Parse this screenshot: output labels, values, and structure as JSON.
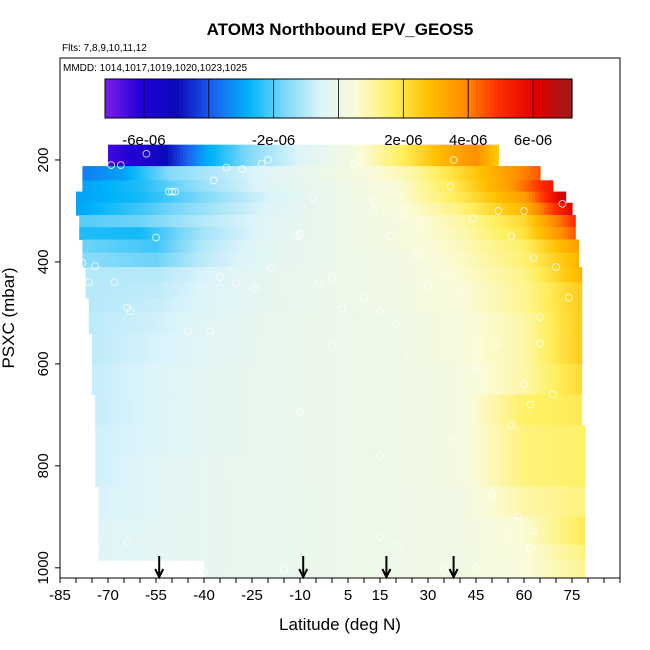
{
  "chart_data": {
    "type": "heatmap",
    "title": "ATOM3 Northbound EPV_GEOS5",
    "flights_label": "Flts: 7,8,9,10,11,12",
    "dates_label": "MMDD: 1014,1017,1019,1020,1023,1025",
    "xlabel": "Latitude (deg N)",
    "ylabel": "PSXC (mbar)",
    "xlim": [
      -85,
      90
    ],
    "ylim": [
      1020,
      0
    ],
    "x_ticks": [
      "-85",
      "-70",
      "-55",
      "-40",
      "-25",
      "-10",
      "5",
      "15",
      "30",
      "45",
      "60",
      "75"
    ],
    "y_ticks": [
      "200",
      "400",
      "600",
      "800",
      "1000"
    ],
    "colorbar": {
      "range": [
        -7.2e-06,
        7.2e-06
      ],
      "tick_labels": [
        "-6e-06",
        "-2e-06",
        "2e-06",
        "4e-06",
        "6e-06"
      ],
      "tick_values": [
        -6e-06,
        -2e-06,
        2e-06,
        4e-06,
        6e-06
      ],
      "colors": [
        "#7a1fe8",
        "#2200d8",
        "#0a0ab8",
        "#1a60f0",
        "#00b4f8",
        "#7cd8f8",
        "#dcf4fb",
        "#fbfbd8",
        "#fff060",
        "#ffc000",
        "#ff8c00",
        "#ff2a00",
        "#e00000",
        "#9e1a1a"
      ]
    },
    "profile_markers_lat": [
      -54,
      -9,
      17,
      38
    ],
    "surface_rows": [
      {
        "p": [
          170,
          212
        ],
        "lat": [
          -70,
          52
        ]
      },
      {
        "p": [
          212,
          240
        ],
        "lat": [
          -78,
          65
        ]
      },
      {
        "p": [
          240,
          262
        ],
        "lat": [
          -78,
          69
        ]
      },
      {
        "p": [
          262,
          284
        ],
        "lat": [
          -80,
          73
        ]
      },
      {
        "p": [
          284,
          308
        ],
        "lat": [
          -80,
          75
        ]
      },
      {
        "p": [
          308,
          332
        ],
        "lat": [
          -79,
          76
        ]
      },
      {
        "p": [
          332,
          356
        ],
        "lat": [
          -79,
          76
        ]
      },
      {
        "p": [
          356,
          382
        ],
        "lat": [
          -78,
          77
        ]
      },
      {
        "p": [
          382,
          410
        ],
        "lat": [
          -78,
          77
        ]
      },
      {
        "p": [
          410,
          440
        ],
        "lat": [
          -77,
          78
        ]
      },
      {
        "p": [
          440,
          470
        ],
        "lat": [
          -77,
          78
        ]
      },
      {
        "p": [
          470,
          500
        ],
        "lat": [
          -76,
          78
        ]
      },
      {
        "p": [
          500,
          540
        ],
        "lat": [
          -76,
          78
        ]
      },
      {
        "p": [
          540,
          600
        ],
        "lat": [
          -75,
          78
        ]
      },
      {
        "p": [
          600,
          660
        ],
        "lat": [
          -75,
          78
        ]
      },
      {
        "p": [
          660,
          720
        ],
        "lat": [
          -74,
          78
        ]
      },
      {
        "p": [
          720,
          780
        ],
        "lat": [
          -74,
          79
        ]
      },
      {
        "p": [
          780,
          840
        ],
        "lat": [
          -74,
          79
        ]
      },
      {
        "p": [
          840,
          900
        ],
        "lat": [
          -73,
          79
        ]
      },
      {
        "p": [
          900,
          955
        ],
        "lat": [
          -73,
          79
        ]
      },
      {
        "p": [
          955,
          985
        ],
        "lat": [
          -73,
          79
        ]
      },
      {
        "p": [
          985,
          1020
        ],
        "lat": [
          -40,
          79
        ]
      }
    ],
    "epv_profiles": [
      {
        "p": 180,
        "lat": [
          -70,
          -55,
          -40,
          -25,
          -10,
          5,
          20,
          35,
          45,
          52
        ],
        "epv": [
          -6.5e-06,
          -5.5e-06,
          -3e-06,
          -1.5e-06,
          -5e-07,
          2e-07,
          1.5e-06,
          3e-06,
          3.8e-06,
          2.5e-06
        ]
      },
      {
        "p": 226,
        "lat": [
          -78,
          -65,
          -50,
          -35,
          -20,
          -5,
          10,
          25,
          40,
          55,
          65
        ],
        "epv": [
          -3.5e-06,
          -3e-06,
          -1.5e-06,
          -1e-06,
          -4e-07,
          0.0,
          4e-07,
          1e-06,
          2.2e-06,
          3.5e-06,
          4.5e-06
        ]
      },
      {
        "p": 251,
        "lat": [
          -78,
          -60,
          -40,
          -20,
          0,
          20,
          40,
          55,
          69
        ],
        "epv": [
          -3e-06,
          -2.5e-06,
          -1.3e-06,
          -4e-07,
          0.0,
          5e-07,
          2e-06,
          3.5e-06,
          5.5e-06
        ]
      },
      {
        "p": 273,
        "lat": [
          -80,
          -60,
          -40,
          -20,
          0,
          20,
          40,
          60,
          73
        ],
        "epv": [
          -3e-06,
          -2.6e-06,
          -1.6e-06,
          -6e-07,
          0.0,
          5e-07,
          1.8e-06,
          3.5e-06,
          6.5e-06
        ]
      },
      {
        "p": 296,
        "lat": [
          -80,
          -60,
          -40,
          -20,
          0,
          20,
          40,
          60,
          75
        ],
        "epv": [
          -3e-06,
          -2.2e-06,
          -1.3e-06,
          -5e-07,
          0.0,
          4e-07,
          1.4e-06,
          3e-06,
          6e-06
        ]
      },
      {
        "p": 320,
        "lat": [
          -79,
          -60,
          -40,
          -20,
          0,
          20,
          40,
          60,
          76
        ],
        "epv": [
          -2e-06,
          -1.8e-06,
          -1e-06,
          -4e-07,
          0.0,
          3e-07,
          1e-06,
          2.2e-06,
          5e-06
        ]
      },
      {
        "p": 344,
        "lat": [
          -79,
          -60,
          -40,
          -20,
          0,
          20,
          40,
          60,
          76
        ],
        "epv": [
          -2.5e-06,
          -2.6e-06,
          -1.2e-06,
          -4e-07,
          0.0,
          3e-07,
          9e-07,
          2e-06,
          4.5e-06
        ]
      },
      {
        "p": 369,
        "lat": [
          -78,
          -55,
          -40,
          -20,
          0,
          20,
          40,
          60,
          77
        ],
        "epv": [
          -1.8e-06,
          -2.2e-06,
          -1e-06,
          -3e-07,
          0.0,
          3e-07,
          8e-07,
          1.6e-06,
          3.5e-06
        ]
      },
      {
        "p": 396,
        "lat": [
          -78,
          -55,
          -40,
          -20,
          0,
          20,
          40,
          60,
          77
        ],
        "epv": [
          -1.5e-06,
          -1.8e-06,
          -9e-07,
          -3e-07,
          0.0,
          2e-07,
          7e-07,
          1.5e-06,
          3e-06
        ]
      },
      {
        "p": 425,
        "lat": [
          -77,
          -55,
          -40,
          -20,
          0,
          20,
          40,
          60,
          78
        ],
        "epv": [
          -1e-06,
          -1e-06,
          -6e-07,
          -2e-07,
          0.0,
          2e-07,
          6e-07,
          1.3e-06,
          3e-06
        ]
      },
      {
        "p": 455,
        "lat": [
          -77,
          -55,
          -40,
          -20,
          0,
          20,
          40,
          60,
          78
        ],
        "epv": [
          -1e-06,
          -9e-07,
          -5e-07,
          -2e-07,
          0.0,
          2e-07,
          5e-07,
          1.2e-06,
          2.5e-06
        ]
      },
      {
        "p": 485,
        "lat": [
          -76,
          -55,
          -40,
          -20,
          0,
          20,
          40,
          60,
          78
        ],
        "epv": [
          -1e-06,
          -8e-07,
          -5e-07,
          -2e-07,
          0.0,
          2e-07,
          5e-07,
          1.2e-06,
          2.5e-06
        ]
      },
      {
        "p": 520,
        "lat": [
          -76,
          -55,
          -40,
          -20,
          0,
          20,
          40,
          60,
          78
        ],
        "epv": [
          -9e-07,
          -7e-07,
          -4e-07,
          -1e-07,
          0.0,
          1e-07,
          4e-07,
          1e-06,
          2.5e-06
        ]
      },
      {
        "p": 570,
        "lat": [
          -75,
          -55,
          -40,
          -20,
          0,
          20,
          40,
          60,
          78
        ],
        "epv": [
          -9e-07,
          -6e-07,
          -4e-07,
          -1e-07,
          0.0,
          1e-07,
          4e-07,
          1e-06,
          2.5e-06
        ]
      },
      {
        "p": 630,
        "lat": [
          -75,
          -55,
          -40,
          -20,
          0,
          20,
          40,
          60,
          78
        ],
        "epv": [
          -8e-07,
          -5e-07,
          -3e-07,
          -1e-07,
          0.0,
          1e-07,
          3e-07,
          1e-06,
          2.2e-06
        ]
      },
      {
        "p": 690,
        "lat": [
          -74,
          -55,
          -40,
          -20,
          0,
          20,
          40,
          60,
          78
        ],
        "epv": [
          -8e-07,
          -5e-07,
          -3e-07,
          -1e-07,
          0.0,
          1e-07,
          3e-07,
          1.6e-06,
          1.8e-06
        ]
      },
      {
        "p": 750,
        "lat": [
          -74,
          -55,
          -40,
          -20,
          0,
          20,
          40,
          60,
          79
        ],
        "epv": [
          -7e-07,
          -5e-07,
          -3e-07,
          -1e-07,
          0.0,
          1e-07,
          3e-07,
          1.4e-06,
          1.6e-06
        ]
      },
      {
        "p": 810,
        "lat": [
          -74,
          -55,
          -40,
          -20,
          0,
          20,
          40,
          60,
          79
        ],
        "epv": [
          -7e-07,
          -4e-07,
          -2e-07,
          -1e-07,
          0.0,
          1e-07,
          3e-07,
          1.4e-06,
          1.6e-06
        ]
      },
      {
        "p": 870,
        "lat": [
          -73,
          -55,
          -40,
          -20,
          0,
          20,
          40,
          60,
          79
        ],
        "epv": [
          -6e-07,
          -4e-07,
          -2e-07,
          -1e-07,
          0.0,
          1e-07,
          2e-07,
          1e-06,
          1.4e-06
        ]
      },
      {
        "p": 928,
        "lat": [
          -73,
          -55,
          -40,
          -20,
          0,
          20,
          40,
          60,
          79
        ],
        "epv": [
          -5e-07,
          -3e-07,
          -2e-07,
          -1e-07,
          0.0,
          1e-07,
          2e-07,
          6e-07,
          1.8e-06
        ]
      },
      {
        "p": 970,
        "lat": [
          -73,
          -55,
          -40,
          -20,
          0,
          20,
          40,
          60,
          79
        ],
        "epv": [
          -5e-07,
          -3e-07,
          -2e-07,
          -1e-07,
          0.0,
          1e-07,
          2e-07,
          5e-07,
          1.4e-06
        ]
      },
      {
        "p": 1002,
        "lat": [
          -40,
          -20,
          0,
          20,
          40,
          60,
          79
        ],
        "epv": [
          -2e-07,
          -1e-07,
          0.0,
          1e-07,
          2e-07,
          5e-07,
          1.2e-06
        ]
      }
    ],
    "observations": [
      {
        "lat": -69,
        "p": 210
      },
      {
        "lat": -66,
        "p": 210
      },
      {
        "lat": -58,
        "p": 188
      },
      {
        "lat": -84,
        "p": 218
      },
      {
        "lat": -51,
        "p": 262
      },
      {
        "lat": -50,
        "p": 262
      },
      {
        "lat": -49,
        "p": 262
      },
      {
        "lat": -37,
        "p": 240
      },
      {
        "lat": -33,
        "p": 215
      },
      {
        "lat": -28,
        "p": 218
      },
      {
        "lat": -22,
        "p": 207
      },
      {
        "lat": -20,
        "p": 200
      },
      {
        "lat": -55,
        "p": 352
      },
      {
        "lat": -85,
        "p": 330
      },
      {
        "lat": -78,
        "p": 402
      },
      {
        "lat": -74,
        "p": 408
      },
      {
        "lat": -76,
        "p": 440
      },
      {
        "lat": -68,
        "p": 440
      },
      {
        "lat": -80,
        "p": 496
      },
      {
        "lat": -63,
        "p": 496
      },
      {
        "lat": -64,
        "p": 490
      },
      {
        "lat": -45,
        "p": 536
      },
      {
        "lat": -38,
        "p": 536
      },
      {
        "lat": -30,
        "p": 442
      },
      {
        "lat": -35,
        "p": 430
      },
      {
        "lat": -24,
        "p": 452
      },
      {
        "lat": -19,
        "p": 412
      },
      {
        "lat": -11,
        "p": 350
      },
      {
        "lat": -10,
        "p": 347
      },
      {
        "lat": -4,
        "p": 440
      },
      {
        "lat": 0,
        "p": 430
      },
      {
        "lat": -6,
        "p": 275
      },
      {
        "lat": 7,
        "p": 208
      },
      {
        "lat": 13,
        "p": 280
      },
      {
        "lat": 13,
        "p": 298
      },
      {
        "lat": 18,
        "p": 350
      },
      {
        "lat": 22,
        "p": 307
      },
      {
        "lat": 27,
        "p": 385
      },
      {
        "lat": 30,
        "p": 448
      },
      {
        "lat": 38,
        "p": 200
      },
      {
        "lat": 37,
        "p": 252
      },
      {
        "lat": 44,
        "p": 315
      },
      {
        "lat": 52,
        "p": 300
      },
      {
        "lat": 56,
        "p": 350
      },
      {
        "lat": 60,
        "p": 300
      },
      {
        "lat": 72,
        "p": 286
      },
      {
        "lat": 63,
        "p": 392
      },
      {
        "lat": 74,
        "p": 470
      },
      {
        "lat": 70,
        "p": 410
      },
      {
        "lat": 65,
        "p": 508
      },
      {
        "lat": 52,
        "p": 560
      },
      {
        "lat": 60,
        "p": 640
      },
      {
        "lat": 56,
        "p": 720
      },
      {
        "lat": 45,
        "p": 608
      },
      {
        "lat": 38,
        "p": 750
      },
      {
        "lat": 15,
        "p": 780
      },
      {
        "lat": -10,
        "p": 695
      },
      {
        "lat": 3,
        "p": 492
      },
      {
        "lat": 0,
        "p": 565
      },
      {
        "lat": 24,
        "p": 580
      },
      {
        "lat": 15,
        "p": 497
      },
      {
        "lat": 10,
        "p": 470
      },
      {
        "lat": 20,
        "p": 522
      },
      {
        "lat": 54,
        "p": 940
      },
      {
        "lat": 58,
        "p": 900
      },
      {
        "lat": 63,
        "p": 928
      },
      {
        "lat": 50,
        "p": 858
      },
      {
        "lat": -73,
        "p": 948
      },
      {
        "lat": -64,
        "p": 948
      },
      {
        "lat": -40,
        "p": 1008
      },
      {
        "lat": -15,
        "p": 1003
      },
      {
        "lat": 15,
        "p": 940
      },
      {
        "lat": 21,
        "p": 955
      },
      {
        "lat": 35,
        "p": 1003
      },
      {
        "lat": 45,
        "p": 1000
      },
      {
        "lat": 56,
        "p": 1002
      },
      {
        "lat": 62,
        "p": 960
      },
      {
        "lat": 65,
        "p": 560
      },
      {
        "lat": 62,
        "p": 680
      },
      {
        "lat": 69,
        "p": 660
      }
    ]
  }
}
